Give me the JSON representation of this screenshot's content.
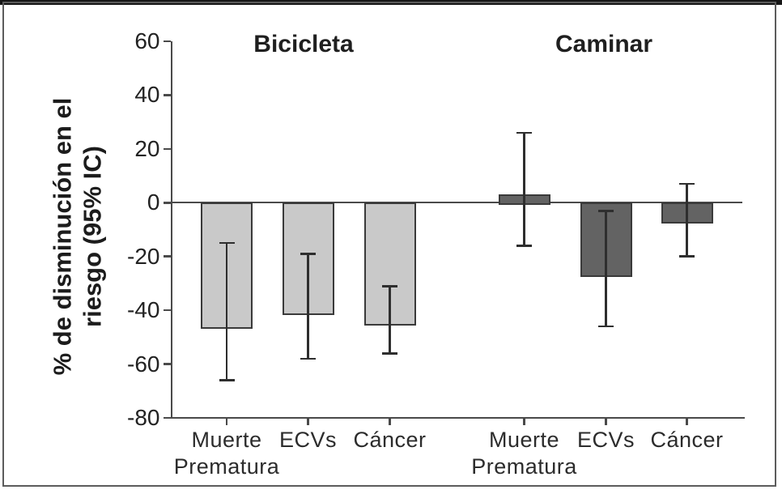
{
  "chart_data": {
    "type": "bar",
    "title": "",
    "group_titles": [
      "Bicicleta",
      "Caminar"
    ],
    "categories": [
      "Muerte Prematura",
      "ECVs",
      "Cáncer"
    ],
    "series": [
      {
        "name": "Bicicleta",
        "values": [
          -46,
          -41,
          -45
        ],
        "ci_high": [
          -15,
          -19,
          -31
        ],
        "ci_low": [
          -66,
          -58,
          -56
        ],
        "color": "#c9c9c9"
      },
      {
        "name": "Caminar",
        "values": [
          3,
          -27,
          -7
        ],
        "ci_high": [
          26,
          -3,
          7
        ],
        "ci_low": [
          -16,
          -46,
          -20
        ],
        "color": "#636363"
      }
    ],
    "ylabel": "% de disminución en el riesgo (95% IC)",
    "ylabel_lines": [
      "% de disminución en el",
      "riesgo (95% IC)"
    ],
    "ylim": [
      -80,
      60
    ],
    "yticks": [
      60,
      40,
      20,
      0,
      -20,
      -40,
      -60,
      -80
    ],
    "legend": "none",
    "grid": false,
    "colors": {
      "bar_border": "#3a3a3a",
      "axis": "#4a4a4a",
      "errorbar": "#2e2e2e",
      "text": "#1f1f1f",
      "frame_border": "#5c5c5c",
      "frame_top": "#161616"
    }
  }
}
